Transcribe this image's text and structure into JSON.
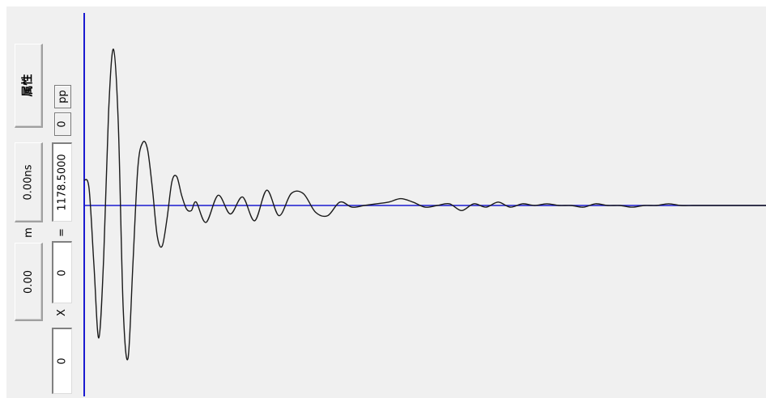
{
  "left_panel": {
    "attribute_button": "属性",
    "time_value": "0.00ns",
    "distance_value": "0.00",
    "distance_unit": "m",
    "multiplier_label": "X",
    "multiplier_value": "0",
    "equals_label": "=",
    "result_value": "1178.5000",
    "offset_value": "0",
    "mode_button": "pp",
    "bottom_value": "0"
  },
  "colors": {
    "baseline": "#1a1ad0",
    "cursor_line": "#1a1ad0",
    "trace": "#1a1a1a",
    "background": "#f0f0f0"
  },
  "waveform": {
    "type": "line",
    "x_range": [
      0,
      840
    ],
    "y_range": [
      -1,
      1
    ],
    "x": [
      0,
      6,
      12,
      18,
      24,
      30,
      36,
      42,
      48,
      54,
      60,
      66,
      72,
      78,
      84,
      90,
      96,
      102,
      108,
      114,
      120,
      126,
      132,
      138,
      150,
      165,
      180,
      195,
      210,
      225,
      240,
      255,
      270,
      285,
      300,
      315,
      330,
      345,
      360,
      375,
      390,
      405,
      420,
      435,
      450,
      465,
      480,
      495,
      510,
      525,
      540,
      555,
      570,
      585,
      600,
      615,
      630,
      645,
      660,
      675,
      690,
      705,
      720,
      735,
      750,
      765,
      780,
      795,
      810,
      825,
      840
    ],
    "y": [
      0.15,
      0.1,
      -0.35,
      -0.78,
      -0.3,
      0.55,
      0.92,
      0.48,
      -0.6,
      -0.9,
      -0.35,
      0.22,
      0.37,
      0.33,
      0.1,
      -0.18,
      -0.24,
      -0.08,
      0.14,
      0.17,
      0.06,
      -0.02,
      -0.03,
      0.02,
      -0.1,
      0.06,
      -0.05,
      0.05,
      -0.09,
      0.09,
      -0.06,
      0.07,
      0.07,
      -0.04,
      -0.06,
      0.02,
      -0.01,
      0.0,
      0.01,
      0.02,
      0.04,
      0.02,
      -0.01,
      0.0,
      0.01,
      -0.03,
      0.01,
      -0.01,
      0.02,
      -0.01,
      0.01,
      0.0,
      0.01,
      0.0,
      0.0,
      -0.01,
      0.01,
      0.0,
      0.0,
      -0.01,
      0.0,
      0.0,
      0.01,
      0.0,
      0.0,
      0.0,
      0.0,
      0.0,
      0.0,
      0.0,
      0.0
    ]
  }
}
